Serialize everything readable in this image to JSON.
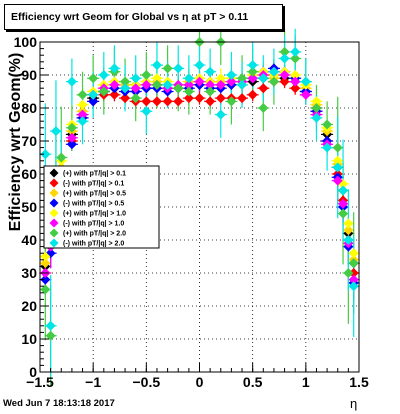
{
  "title": "Efficiency wrt Geom for Global vs  η at pT > 0.11",
  "ylabel": "Efficiency wrt Geom(%)",
  "xlabel": "η",
  "datestamp": "Wed Jun  7 18:13:18 2017",
  "chart_data": {
    "type": "scatter",
    "xlim": [
      -1.5,
      1.5
    ],
    "ylim": [
      0,
      100
    ],
    "x_ticks": [
      "−1.5",
      "−1",
      "−0.5",
      "0",
      "0.5",
      "1",
      "1.5"
    ],
    "y_ticks": [
      "0",
      "10",
      "20",
      "30",
      "40",
      "50",
      "60",
      "70",
      "80",
      "90",
      "100"
    ],
    "grid": true,
    "legend_position": "left",
    "series": [
      {
        "name": "(+) with pT/|q| > 0.1",
        "color": "#000000",
        "x": [
          -1.45,
          -1.4,
          -1.35,
          -1.3,
          -1.2,
          -1.1,
          -1.0,
          -0.9,
          -0.8,
          -0.7,
          -0.6,
          -0.5,
          -0.4,
          -0.3,
          -0.2,
          -0.1,
          0.0,
          0.1,
          0.2,
          0.3,
          0.4,
          0.5,
          0.6,
          0.7,
          0.8,
          0.9,
          1.0,
          1.1,
          1.2,
          1.3,
          1.35,
          1.4,
          1.45
        ],
        "y": [
          32,
          40,
          55,
          60,
          72,
          78,
          83,
          85,
          86,
          86,
          87,
          86,
          87,
          86,
          86,
          87,
          87,
          88,
          87,
          87,
          88,
          88,
          89,
          90,
          89,
          88,
          85,
          80,
          72,
          62,
          55,
          42,
          33
        ]
      },
      {
        "name": "(-) with pT/|q| > 0.1",
        "color": "#ff0000",
        "x": [
          -1.45,
          -1.4,
          -1.35,
          -1.3,
          -1.2,
          -1.1,
          -1.0,
          -0.9,
          -0.8,
          -0.7,
          -0.6,
          -0.5,
          -0.4,
          -0.3,
          -0.2,
          -0.1,
          0.0,
          0.1,
          0.2,
          0.3,
          0.4,
          0.5,
          0.6,
          0.7,
          0.8,
          0.9,
          1.0,
          1.1,
          1.2,
          1.3,
          1.35,
          1.4,
          1.45
        ],
        "y": [
          30,
          38,
          52,
          58,
          70,
          77,
          82,
          84,
          84,
          83,
          82,
          82,
          82,
          82,
          82,
          83,
          83,
          82,
          83,
          83,
          83,
          84,
          86,
          88,
          88,
          86,
          84,
          79,
          70,
          60,
          52,
          40,
          30
        ]
      },
      {
        "name": "(+) with pT/|q| > 0.5",
        "color": "#ffd700",
        "x": [
          -1.45,
          -1.4,
          -1.35,
          -1.3,
          -1.2,
          -1.1,
          -1.0,
          -0.9,
          -0.8,
          -0.7,
          -0.6,
          -0.5,
          -0.4,
          -0.3,
          -0.2,
          -0.1,
          0.0,
          0.1,
          0.2,
          0.3,
          0.4,
          0.5,
          0.6,
          0.7,
          0.8,
          0.9,
          1.0,
          1.1,
          1.2,
          1.3,
          1.35,
          1.4,
          1.45
        ],
        "y": [
          33,
          42,
          56,
          62,
          73,
          79,
          84,
          86,
          87,
          87,
          86,
          87,
          88,
          87,
          86,
          88,
          88,
          87,
          88,
          88,
          87,
          89,
          90,
          89,
          90,
          89,
          86,
          81,
          73,
          63,
          55,
          43,
          34
        ]
      },
      {
        "name": "(-) with pT/|q| > 0.5",
        "color": "#0000ff",
        "x": [
          -1.45,
          -1.4,
          -1.35,
          -1.3,
          -1.2,
          -1.1,
          -1.0,
          -0.9,
          -0.8,
          -0.7,
          -0.6,
          -0.5,
          -0.4,
          -0.3,
          -0.2,
          -0.1,
          0.0,
          0.1,
          0.2,
          0.3,
          0.4,
          0.5,
          0.6,
          0.7,
          0.8,
          0.9,
          1.0,
          1.1,
          1.2,
          1.3,
          1.35,
          1.4,
          1.45
        ],
        "y": [
          28,
          36,
          50,
          58,
          69,
          77,
          82,
          85,
          86,
          85,
          85,
          86,
          86,
          85,
          86,
          86,
          87,
          86,
          86,
          87,
          88,
          89,
          91,
          92,
          91,
          89,
          85,
          79,
          70,
          59,
          50,
          38,
          27
        ]
      },
      {
        "name": "(+) with pT/|q| > 1.0",
        "color": "#ffff00",
        "x": [
          -1.45,
          -1.4,
          -1.35,
          -1.3,
          -1.2,
          -1.1,
          -1.0,
          -0.9,
          -0.8,
          -0.7,
          -0.6,
          -0.5,
          -0.4,
          -0.3,
          -0.2,
          -0.1,
          0.0,
          0.1,
          0.2,
          0.3,
          0.4,
          0.5,
          0.6,
          0.7,
          0.8,
          0.9,
          1.0,
          1.1,
          1.2,
          1.3,
          1.35,
          1.4,
          1.45
        ],
        "y": [
          35,
          44,
          58,
          64,
          75,
          81,
          85,
          87,
          88,
          88,
          87,
          88,
          89,
          88,
          87,
          89,
          89,
          88,
          89,
          89,
          88,
          90,
          91,
          90,
          91,
          90,
          87,
          82,
          74,
          64,
          57,
          45,
          36
        ]
      },
      {
        "name": "(-) with pT/|q| > 1.0",
        "color": "#ff00ff",
        "x": [
          -1.45,
          -1.4,
          -1.35,
          -1.3,
          -1.2,
          -1.1,
          -1.0,
          -0.9,
          -0.8,
          -0.7,
          -0.6,
          -0.5,
          -0.4,
          -0.3,
          -0.2,
          -0.1,
          0.0,
          0.1,
          0.2,
          0.3,
          0.4,
          0.5,
          0.6,
          0.7,
          0.8,
          0.9,
          1.0,
          1.1,
          1.2,
          1.3,
          1.35,
          1.4,
          1.45
        ],
        "y": [
          30,
          38,
          53,
          60,
          71,
          78,
          84,
          86,
          87,
          86,
          86,
          87,
          87,
          86,
          87,
          87,
          88,
          87,
          87,
          88,
          88,
          89,
          90,
          91,
          90,
          88,
          84,
          78,
          69,
          58,
          51,
          39,
          28
        ]
      },
      {
        "name": "(+) with pT/|q| > 2.0",
        "color": "#44cc44",
        "x": [
          -1.45,
          -1.4,
          -1.35,
          -1.3,
          -1.2,
          -1.1,
          -1.0,
          -0.9,
          -0.8,
          -0.7,
          -0.6,
          -0.5,
          -0.4,
          -0.3,
          -0.2,
          -0.1,
          0.0,
          0.1,
          0.2,
          0.3,
          0.4,
          0.5,
          0.6,
          0.7,
          0.8,
          0.9,
          1.0,
          1.1,
          1.2,
          1.3,
          1.35,
          1.4,
          1.45
        ],
        "y": [
          25,
          11,
          57,
          65,
          74,
          84,
          89,
          85,
          91,
          88,
          83,
          90,
          87,
          92,
          86,
          85,
          100,
          85,
          100,
          82,
          89,
          91,
          80,
          88,
          97,
          95,
          88,
          80,
          75,
          68,
          48,
          30,
          33
        ]
      },
      {
        "name": "(-) with pT/|q| > 2.0",
        "color": "#00e5e5",
        "x": [
          -1.45,
          -1.4,
          -1.35,
          -1.3,
          -1.2,
          -1.1,
          -1.0,
          -0.9,
          -0.8,
          -0.7,
          -0.6,
          -0.5,
          -0.4,
          -0.3,
          -0.2,
          -0.1,
          0.0,
          0.1,
          0.2,
          0.3,
          0.4,
          0.5,
          0.6,
          0.7,
          0.8,
          0.9,
          1.0,
          1.1,
          1.2,
          1.3,
          1.35,
          1.4,
          1.45
        ],
        "y": [
          66,
          14,
          73,
          58,
          88,
          76,
          84,
          90,
          92,
          86,
          89,
          79,
          93,
          87,
          92,
          89,
          93,
          91,
          78,
          90,
          87,
          93,
          89,
          91,
          95,
          97,
          88,
          77,
          68,
          62,
          55,
          40,
          26
        ]
      }
    ]
  }
}
